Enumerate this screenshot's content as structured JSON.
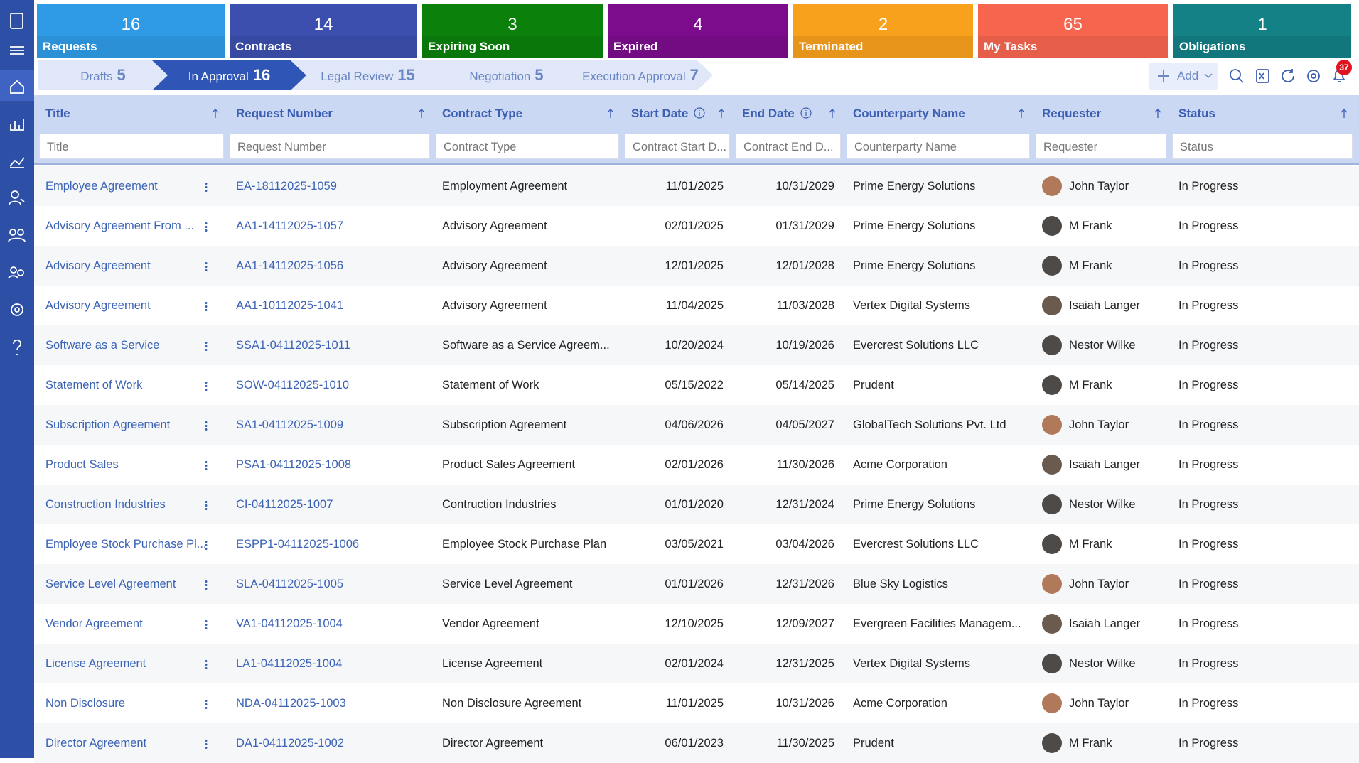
{
  "tiles": [
    {
      "count": 16,
      "label": "Requests",
      "color": "#2f9be6"
    },
    {
      "count": 14,
      "label": "Contracts",
      "color": "#3c4fae"
    },
    {
      "count": 3,
      "label": "Expiring Soon",
      "color": "#0b800b"
    },
    {
      "count": 4,
      "label": "Expired",
      "color": "#7c0c8c"
    },
    {
      "count": 2,
      "label": "Terminated",
      "color": "#f8a11c"
    },
    {
      "count": 65,
      "label": "My Tasks",
      "color": "#f8654f"
    },
    {
      "count": 1,
      "label": "Obligations",
      "color": "#138186"
    }
  ],
  "stages": [
    {
      "label": "Drafts",
      "count": 5,
      "active": false
    },
    {
      "label": "In Approval",
      "count": 16,
      "active": true
    },
    {
      "label": "Legal Review",
      "count": 15,
      "active": false
    },
    {
      "label": "Negotiation",
      "count": 5,
      "active": false
    },
    {
      "label": "Execution Approval",
      "count": 7,
      "active": false
    }
  ],
  "toolbar": {
    "add": "Add",
    "notifications": 37
  },
  "table": {
    "columns": [
      {
        "label": "Title",
        "placeholder": "Title"
      },
      {
        "label": "Request Number",
        "placeholder": "Request Number"
      },
      {
        "label": "Contract Type",
        "placeholder": "Contract Type"
      },
      {
        "label": "Start Date",
        "placeholder": "Contract Start D..."
      },
      {
        "label": "End Date",
        "placeholder": "Contract End D..."
      },
      {
        "label": "Counterparty Name",
        "placeholder": "Counterparty Name"
      },
      {
        "label": "Requester",
        "placeholder": "Requester"
      },
      {
        "label": "Status",
        "placeholder": "Status"
      }
    ],
    "rows": [
      [
        "Employee Agreement",
        "EA-18112025-1059",
        "Employment Agreement",
        "11/01/2025",
        "10/31/2029",
        "Prime Energy Solutions",
        "John Taylor",
        "In Progress"
      ],
      [
        "Advisory Agreement From ...",
        "AA1-14112025-1057",
        "Advisory Agreement",
        "02/01/2025",
        "01/31/2029",
        "Prime Energy Solutions",
        "M Frank",
        "In Progress"
      ],
      [
        "Advisory Agreement",
        "AA1-14112025-1056",
        "Advisory Agreement",
        "12/01/2025",
        "12/01/2028",
        "Prime Energy Solutions",
        "M Frank",
        "In Progress"
      ],
      [
        "Advisory Agreement",
        "AA1-10112025-1041",
        "Advisory Agreement",
        "11/04/2025",
        "11/03/2028",
        "Vertex Digital Systems",
        "Isaiah Langer",
        "In Progress"
      ],
      [
        "Software as a Service",
        "SSA1-04112025-1011",
        "Software as a Service Agreem...",
        "10/20/2024",
        "10/19/2026",
        "Evercrest Solutions LLC",
        "Nestor Wilke",
        "In Progress"
      ],
      [
        "Statement of Work",
        "SOW-04112025-1010",
        "Statement of Work",
        "05/15/2022",
        "05/14/2025",
        "Prudent",
        "M Frank",
        "In Progress"
      ],
      [
        "Subscription Agreement",
        "SA1-04112025-1009",
        "Subscription Agreement",
        "04/06/2026",
        "04/05/2027",
        "GlobalTech Solutions Pvt. Ltd",
        "John Taylor",
        "In Progress"
      ],
      [
        "Product Sales",
        "PSA1-04112025-1008",
        "Product Sales Agreement",
        "02/01/2026",
        "11/30/2026",
        "Acme Corporation",
        "Isaiah Langer",
        "In Progress"
      ],
      [
        "Construction Industries",
        "CI-04112025-1007",
        "Contruction Industries",
        "01/01/2020",
        "12/31/2024",
        "Prime Energy Solutions",
        "Nestor Wilke",
        "In Progress"
      ],
      [
        "Employee Stock Purchase Pl...",
        "ESPP1-04112025-1006",
        "Employee Stock Purchase Plan",
        "03/05/2021",
        "03/04/2026",
        "Evercrest Solutions LLC",
        "M Frank",
        "In Progress"
      ],
      [
        "Service Level Agreement",
        "SLA-04112025-1005",
        "Service Level Agreement",
        "01/01/2026",
        "12/31/2026",
        "Blue Sky Logistics",
        "John Taylor",
        "In Progress"
      ],
      [
        "Vendor Agreement",
        "VA1-04112025-1004",
        "Vendor Agreement",
        "12/10/2025",
        "12/09/2027",
        "Evergreen Facilities Managem...",
        "Isaiah Langer",
        "In Progress"
      ],
      [
        "License Agreement",
        "LA1-04112025-1004",
        "License Agreement",
        "02/01/2024",
        "12/31/2025",
        "Vertex Digital Systems",
        "Nestor Wilke",
        "In Progress"
      ],
      [
        "Non Disclosure",
        "NDA-04112025-1003",
        "Non Disclosure Agreement",
        "11/01/2025",
        "10/31/2026",
        "Acme Corporation",
        "John Taylor",
        "In Progress"
      ],
      [
        "Director Agreement",
        "DA1-04112025-1002",
        "Director Agreement",
        "06/01/2023",
        "11/30/2025",
        "Prudent",
        "M Frank",
        "In Progress"
      ]
    ]
  }
}
